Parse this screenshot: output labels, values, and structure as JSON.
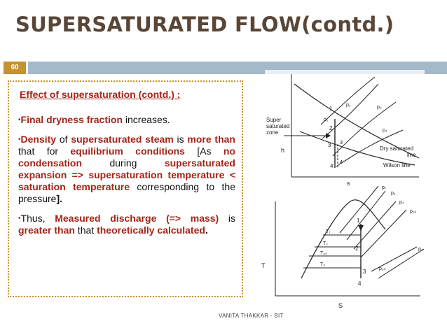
{
  "slide": {
    "title": "SUPERSATURATED FLOW(contd.)",
    "number": "60",
    "footer": "VANITA THAKKAR - BIT"
  },
  "content": {
    "heading": "Effect of supersaturation (contd.) :",
    "p1": {
      "bullet": "•",
      "b1": "Final dryness fraction",
      "t1": " increases."
    },
    "p2": {
      "bullet": "•",
      "b1": "Density",
      "t1": " of ",
      "b2": "supersaturated steam",
      "t2": " is ",
      "b3": "more than",
      "t3": " that for ",
      "b4": "equilibrium conditions",
      "t4": " [As ",
      "b5": "no condensation",
      "t5": " during ",
      "b6": "supersaturated expansion => supersaturation temperature < saturation temperature",
      "t6": " corresponding to the pressure",
      "end": "]."
    },
    "p3": {
      "bullet": "•",
      "t1": "Thus, ",
      "b1": "Measured discharge (=> mass)",
      "t2": " is ",
      "b2": "greater than",
      "t3": " that ",
      "b3": "theoretically calculated",
      "end": "."
    }
  },
  "diagram_hs": {
    "supersat_label_1": "Super",
    "supersat_label_2": "saturated",
    "supersat_label_3": "zone",
    "h_axis": "h",
    "s_axis": "s",
    "p1": "p₁",
    "p2": "p₂",
    "p3": "p₃",
    "p4": "p₄",
    "pt1": "1",
    "pt2": "2",
    "pt3": "3",
    "pt3p": "3'",
    "pt4": "4",
    "pt4p": "4'",
    "dry_label_1": "Dry saturated",
    "dry_label_2": "line",
    "wilson_label": "Wilson line"
  },
  "diagram_ts": {
    "t_axis": "T",
    "s_axis": "S",
    "T1": "T₁",
    "T2": "T₂",
    "T3s": "T₃ₛ",
    "T3": "T₃",
    "p1": "p₁",
    "p2": "p₂",
    "p3": "p₃",
    "p3s": "p₃ₛ",
    "p4": "p₄",
    "p5s": "p₅ₛ",
    "pt1": "1",
    "pt2": "2",
    "pt3": "3",
    "pt4": "4"
  }
}
